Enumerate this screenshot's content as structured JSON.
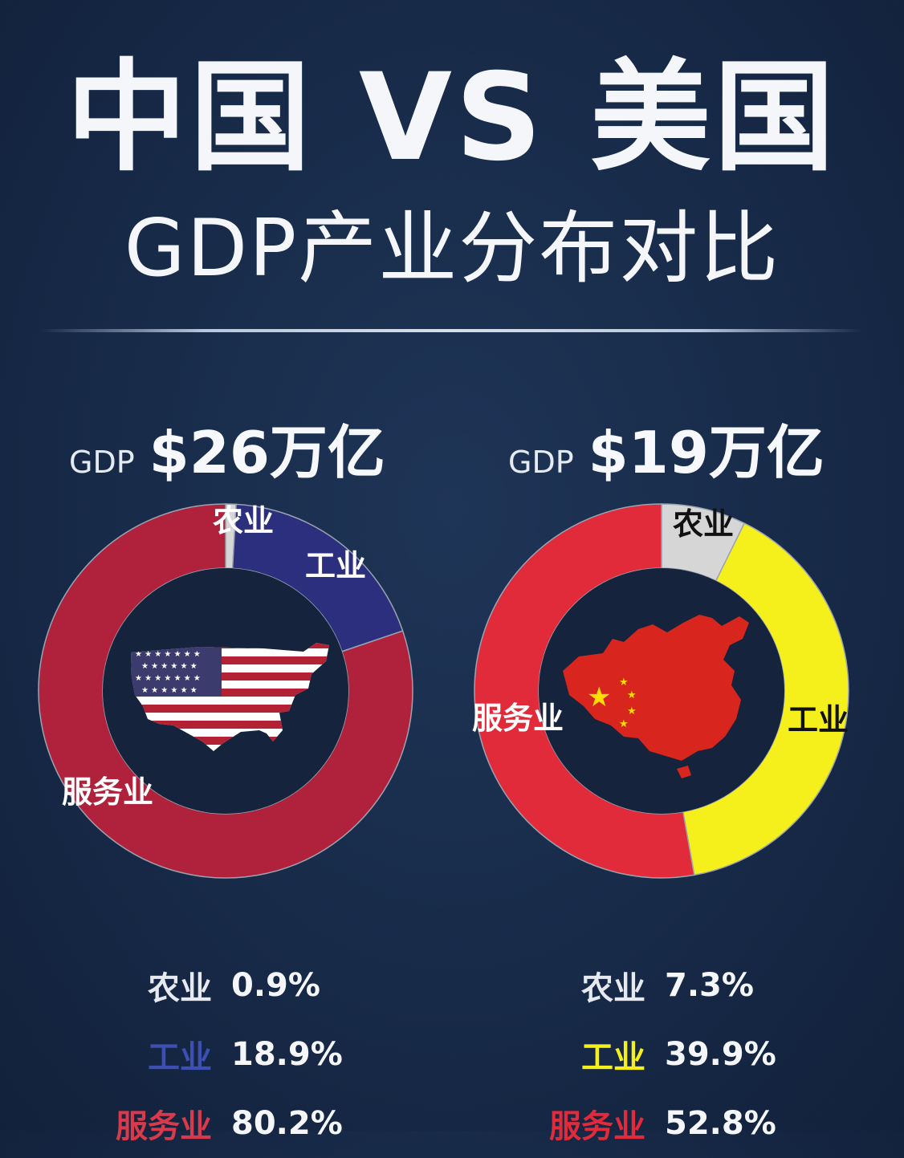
{
  "header": {
    "title": "中国 VS 美国",
    "subtitle": "GDP产业分布对比"
  },
  "colors": {
    "background": "#172a48",
    "agriculture": "#d6d6d6",
    "us_industry": "#2b2f7e",
    "us_services": "#b0223c",
    "cn_industry": "#f5ef1c",
    "cn_services": "#e12a3a"
  },
  "icons": {
    "us_center": "us-flag-map-icon",
    "cn_center": "china-flag-map-icon"
  },
  "chart_data": [
    {
      "type": "pie",
      "gdp_label": "GDP",
      "gdp_value": "$26万亿",
      "categories": [
        "农业",
        "工业",
        "服务业"
      ],
      "values": [
        0.9,
        18.9,
        80.2
      ],
      "value_labels": [
        "0.9%",
        "18.9%",
        "80.2%"
      ],
      "colors": [
        "#d6d6d6",
        "#2b2f7e",
        "#b0223c"
      ],
      "label_colors": [
        "#ffffff",
        "#ffffff",
        "#ffffff"
      ],
      "legend_colors": [
        "#e6e9ef",
        "#3d4fb3",
        "#d93a4b"
      ]
    },
    {
      "type": "pie",
      "gdp_label": "GDP",
      "gdp_value": "$19万亿",
      "categories": [
        "农业",
        "工业",
        "服务业"
      ],
      "values": [
        7.3,
        39.9,
        52.8
      ],
      "value_labels": [
        "7.3%",
        "39.9%",
        "52.8%"
      ],
      "colors": [
        "#d6d6d6",
        "#f5ef1c",
        "#e12a3a"
      ],
      "label_colors": [
        "#111111",
        "#111111",
        "#ffffff"
      ],
      "legend_colors": [
        "#e6e9ef",
        "#f5ef1c",
        "#e12a3a"
      ]
    }
  ]
}
